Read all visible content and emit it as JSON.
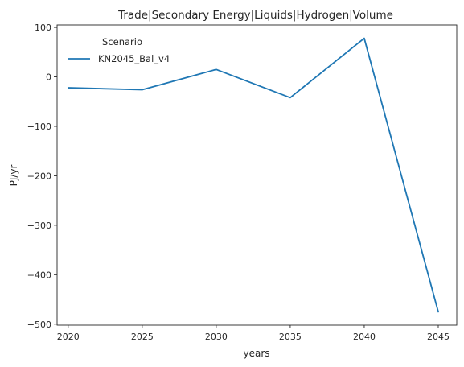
{
  "chart_data": {
    "type": "line",
    "title": "Trade|Secondary Energy|Liquids|Hydrogen|Volume",
    "xlabel": "years",
    "ylabel": "PJ/yr",
    "x": [
      2020,
      2025,
      2030,
      2035,
      2040,
      2045
    ],
    "xticks": [
      2020,
      2025,
      2030,
      2035,
      2040,
      2045
    ],
    "yticks": [
      100,
      0,
      -100,
      -200,
      -300,
      -400,
      -500
    ],
    "xlim": [
      2019.25,
      2046.25
    ],
    "ylim": [
      -502,
      105
    ],
    "grid": false,
    "legend": {
      "title": "Scenario",
      "placement": "top-left"
    },
    "series": [
      {
        "name": "KN2045_Bal_v4",
        "color": "#1f77b4",
        "values": [
          -22,
          -26,
          15,
          -42,
          78,
          -475
        ]
      }
    ]
  }
}
